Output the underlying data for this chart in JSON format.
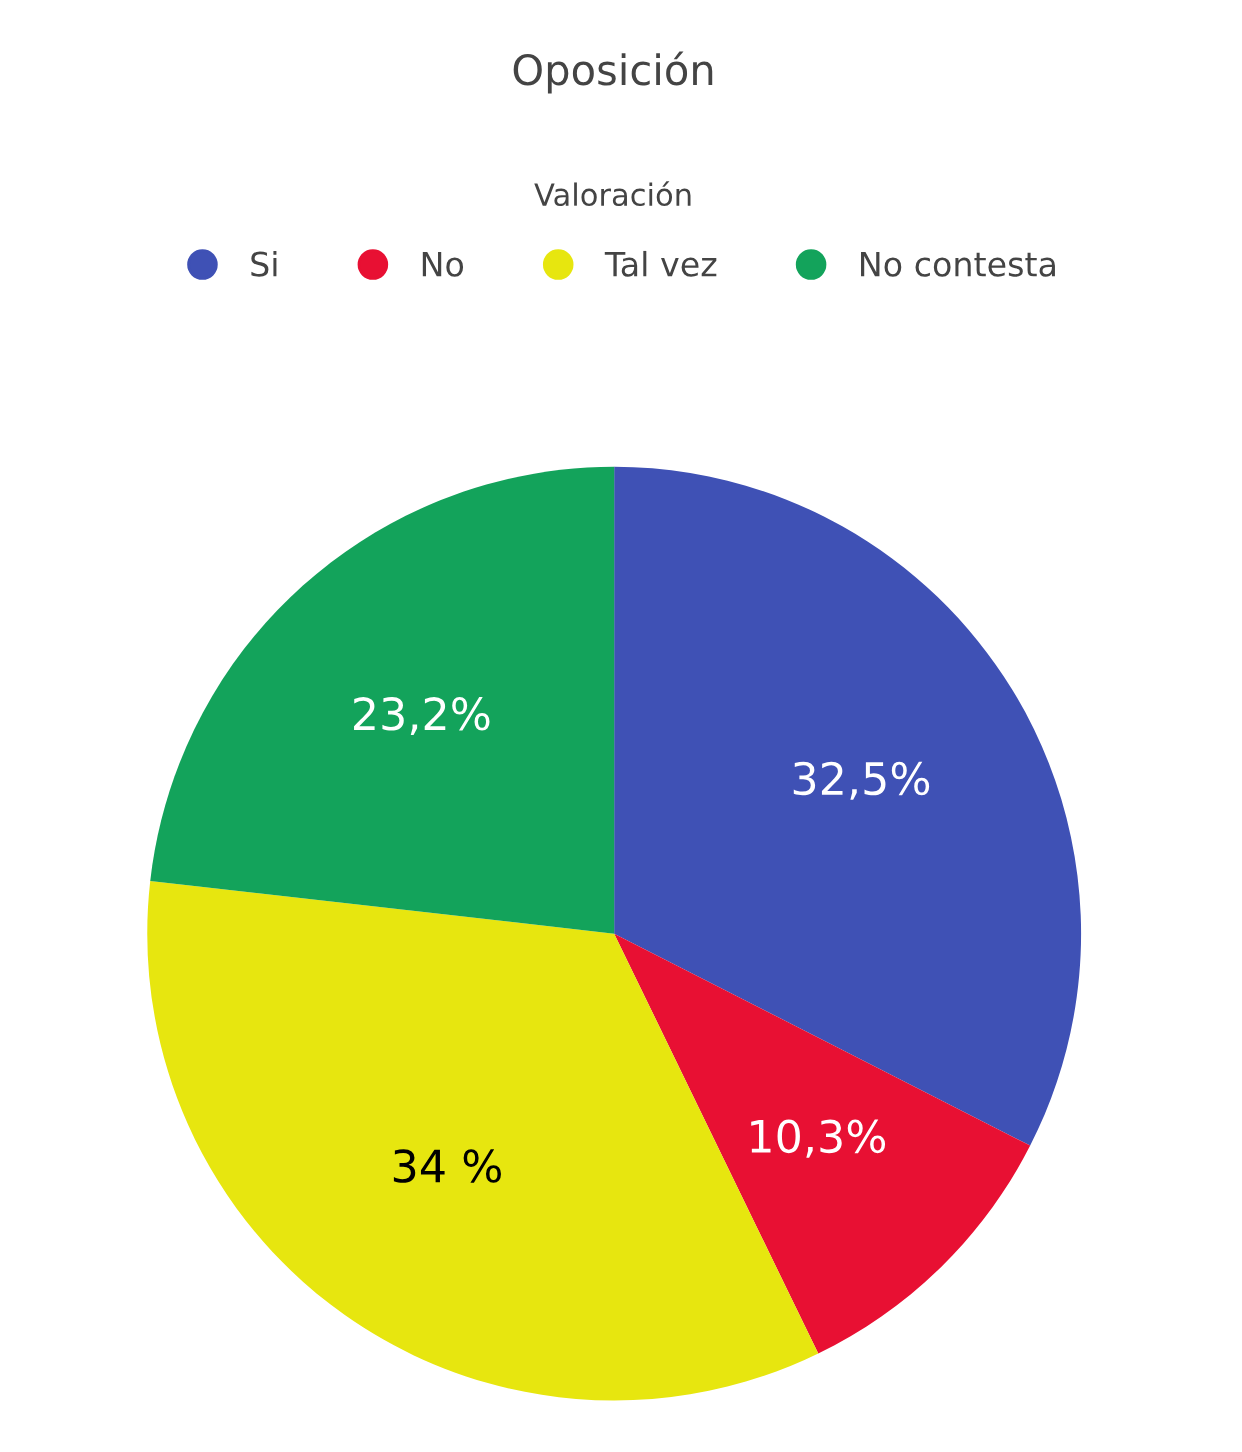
{
  "chart_data": {
    "type": "pie",
    "title": "Oposición",
    "legend_title": "Valoración",
    "categories": [
      "Si",
      "No",
      "Tal vez",
      "No contesta"
    ],
    "values": [
      32.5,
      10.3,
      34,
      23.2
    ],
    "colors": [
      "#3f51b5",
      "#e81033",
      "#e7e60f",
      "#13a35b"
    ],
    "value_labels": [
      "32,5%",
      "10,3%",
      "34 %",
      "23,2%"
    ],
    "legend": "top"
  }
}
